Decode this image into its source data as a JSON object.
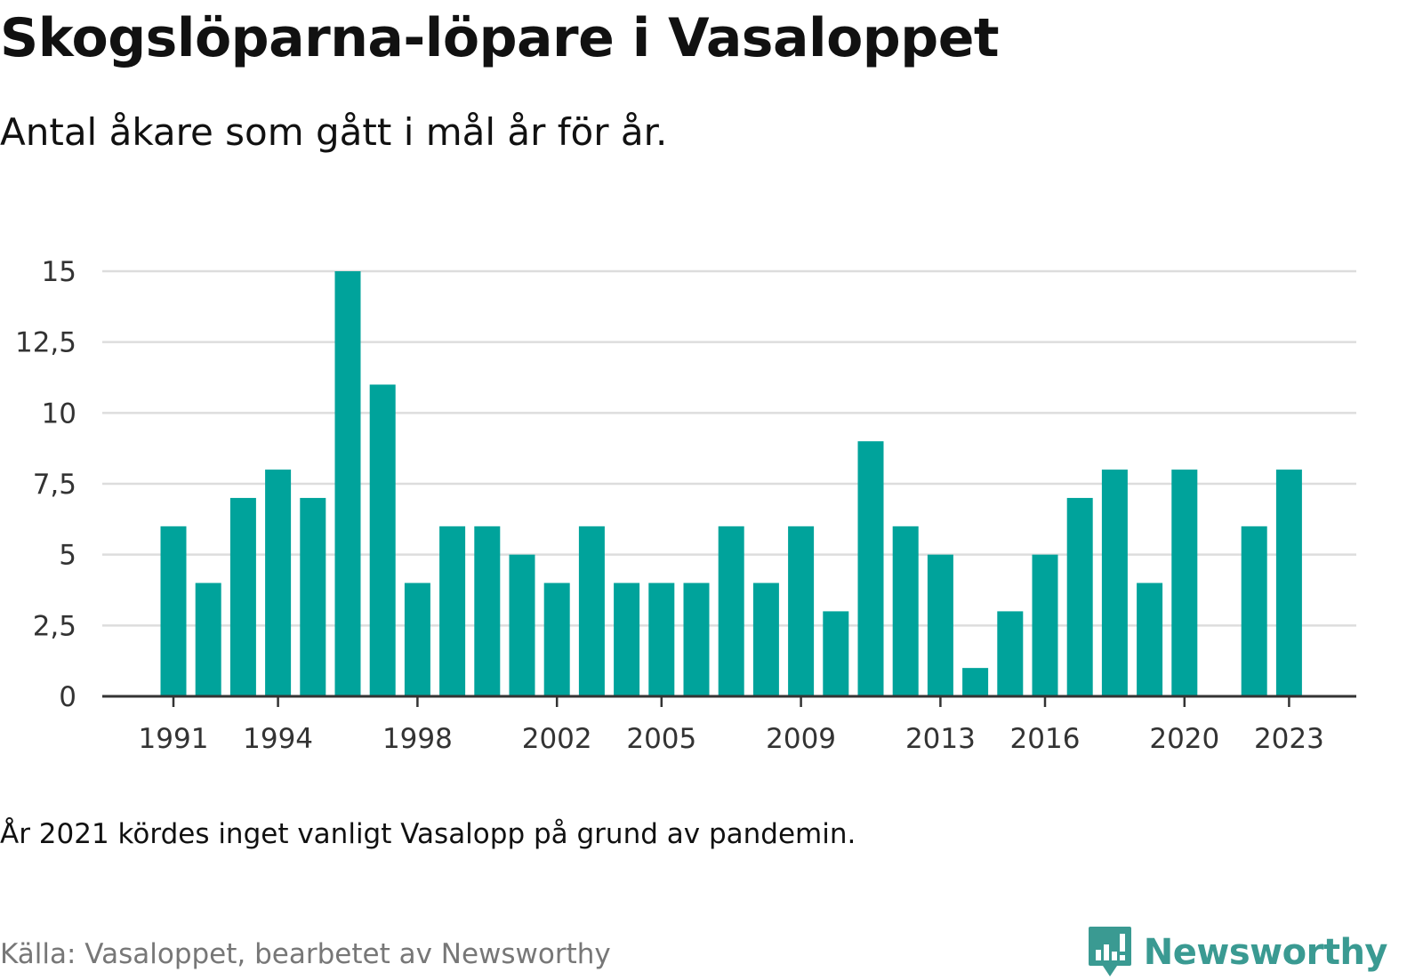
{
  "header": {
    "title": "Skogslöparna-löpare i Vasaloppet",
    "subtitle": "Antal åkare som gått i mål år för år."
  },
  "footer": {
    "note": "År 2021 kördes inget vanligt Vasalopp på grund av pandemin.",
    "source": "Källa: Vasaloppet, bearbetet av Newsworthy",
    "brand": "Newsworthy"
  },
  "colors": {
    "bar": "#00a39b",
    "grid": "#dddddd",
    "axis": "#333333",
    "brand": "#3a9a92"
  },
  "chart_data": {
    "type": "bar",
    "title": "Skogslöparna-löpare i Vasaloppet",
    "subtitle": "Antal åkare som gått i mål år för år.",
    "xlabel": "",
    "ylabel": "",
    "categories": [
      1991,
      1992,
      1993,
      1994,
      1995,
      1996,
      1997,
      1998,
      1999,
      2000,
      2001,
      2002,
      2003,
      2004,
      2005,
      2006,
      2007,
      2008,
      2009,
      2010,
      2011,
      2012,
      2013,
      2014,
      2015,
      2016,
      2017,
      2018,
      2019,
      2020,
      2021,
      2022,
      2023
    ],
    "values": [
      6,
      4,
      7,
      8,
      7,
      15,
      11,
      4,
      6,
      6,
      5,
      4,
      6,
      4,
      4,
      4,
      6,
      4,
      6,
      3,
      9,
      6,
      5,
      1,
      3,
      5,
      7,
      8,
      4,
      8,
      null,
      6,
      8
    ],
    "ylim": [
      0,
      15
    ],
    "yticks": [
      0,
      2.5,
      5,
      7.5,
      10,
      12.5,
      15
    ],
    "ytick_labels": [
      "0",
      "2,5",
      "5",
      "7,5",
      "10",
      "12,5",
      "15"
    ],
    "xtick_years": [
      1991,
      1994,
      1998,
      2002,
      2005,
      2009,
      2013,
      2016,
      2020,
      2023
    ],
    "grid": true,
    "legend": "none"
  }
}
